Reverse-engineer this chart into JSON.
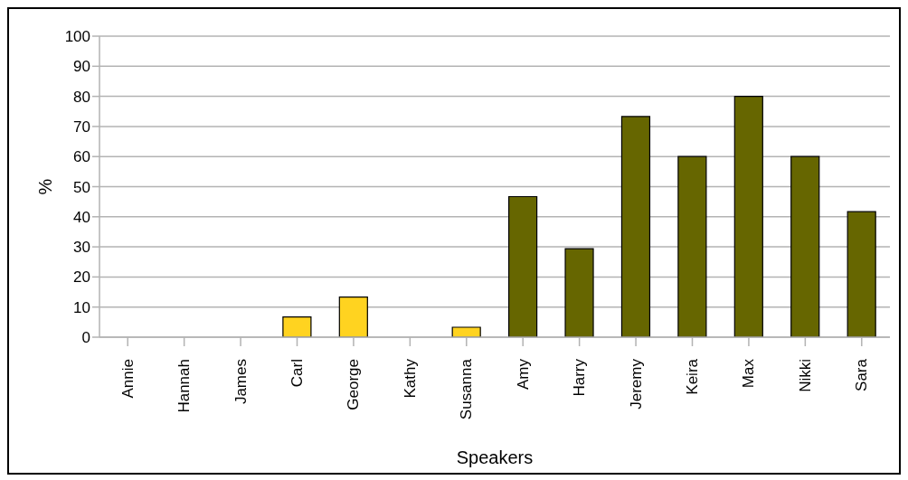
{
  "chart_data": {
    "type": "bar",
    "xlabel": "Speakers",
    "ylabel": "%",
    "categories": [
      "Annie",
      "Hannah",
      "James",
      "Carl",
      "George",
      "Kathy",
      "Susanna",
      "Amy",
      "Harry",
      "Jeremy",
      "Keira",
      "Max",
      "Nikki",
      "Sara"
    ],
    "values": [
      0,
      0,
      0,
      6.7,
      13.3,
      0,
      3.3,
      46.7,
      29.4,
      73.3,
      60,
      80,
      60,
      41.7
    ],
    "colors": [
      "#ffd320",
      "#ffd320",
      "#ffd320",
      "#ffd320",
      "#ffd320",
      "#ffd320",
      "#ffd320",
      "#666600",
      "#666600",
      "#666600",
      "#666600",
      "#666600",
      "#666600",
      "#666600"
    ],
    "ylim": [
      0,
      100
    ],
    "yticks": [
      0,
      10,
      20,
      30,
      40,
      50,
      60,
      70,
      80,
      90,
      100
    ],
    "grid": "y"
  }
}
